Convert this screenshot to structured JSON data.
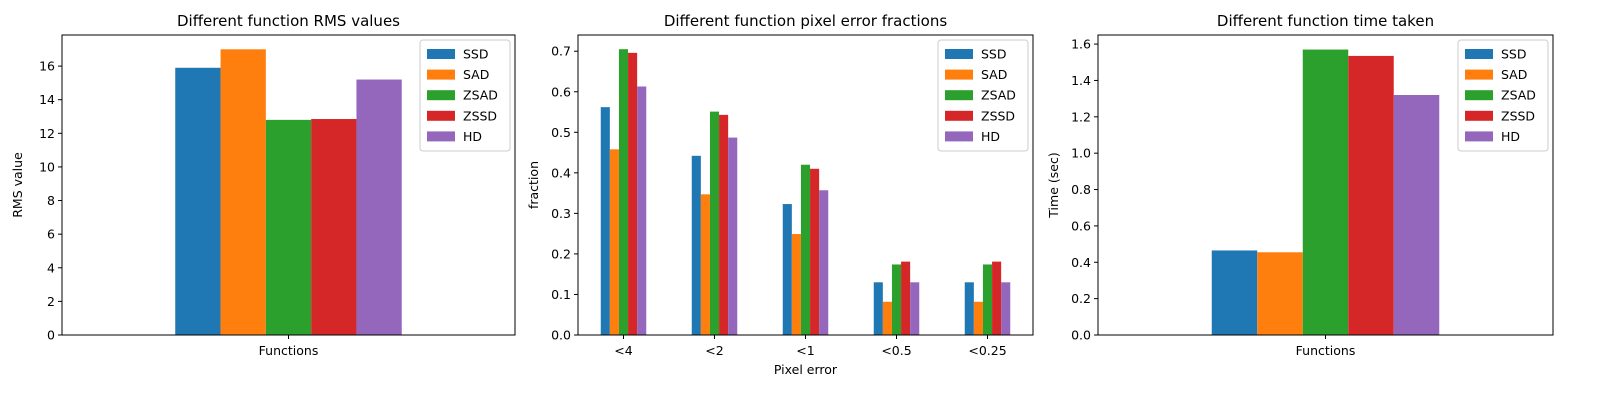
{
  "chart_data": [
    {
      "type": "bar",
      "title": "Different function RMS values",
      "xlabel": "",
      "ylabel": "RMS value",
      "categories": [
        "Functions"
      ],
      "series": [
        {
          "name": "SSD",
          "values": [
            15.9
          ]
        },
        {
          "name": "SAD",
          "values": [
            17.0
          ]
        },
        {
          "name": "ZSAD",
          "values": [
            12.8
          ]
        },
        {
          "name": "ZSSD",
          "values": [
            12.85
          ]
        },
        {
          "name": "HD",
          "values": [
            15.2
          ]
        }
      ],
      "ylim": [
        0,
        17.85
      ],
      "yticks": [
        0,
        2,
        4,
        6,
        8,
        10,
        12,
        14,
        16
      ],
      "ytick_labels": [
        "0",
        "2",
        "4",
        "6",
        "8",
        "10",
        "12",
        "14",
        "16"
      ],
      "legend": "top-right",
      "grid": false
    },
    {
      "type": "bar",
      "title": "Different function pixel error fractions",
      "xlabel": "Pixel error",
      "ylabel": "fraction",
      "categories": [
        "<4",
        "<2",
        "<1",
        "<0.5",
        "<0.25"
      ],
      "series": [
        {
          "name": "SSD",
          "values": [
            0.562,
            0.442,
            0.323,
            0.13,
            0.13
          ]
        },
        {
          "name": "SAD",
          "values": [
            0.458,
            0.347,
            0.249,
            0.082,
            0.082
          ]
        },
        {
          "name": "ZSAD",
          "values": [
            0.705,
            0.551,
            0.42,
            0.174,
            0.174
          ]
        },
        {
          "name": "ZSSD",
          "values": [
            0.696,
            0.543,
            0.41,
            0.181,
            0.181
          ]
        },
        {
          "name": "HD",
          "values": [
            0.613,
            0.487,
            0.357,
            0.13,
            0.13
          ]
        }
      ],
      "ylim": [
        0,
        0.74
      ],
      "yticks": [
        0,
        0.1,
        0.2,
        0.3,
        0.4,
        0.5,
        0.6,
        0.7
      ],
      "ytick_labels": [
        "0.0",
        "0.1",
        "0.2",
        "0.3",
        "0.4",
        "0.5",
        "0.6",
        "0.7"
      ],
      "legend": "top-right",
      "grid": false
    },
    {
      "type": "bar",
      "title": "Different function time taken",
      "xlabel": "",
      "ylabel": "Time (sec)",
      "categories": [
        "Functions"
      ],
      "series": [
        {
          "name": "SSD",
          "values": [
            0.465
          ]
        },
        {
          "name": "SAD",
          "values": [
            0.455
          ]
        },
        {
          "name": "ZSAD",
          "values": [
            1.57
          ]
        },
        {
          "name": "ZSSD",
          "values": [
            1.535
          ]
        },
        {
          "name": "HD",
          "values": [
            1.32
          ]
        }
      ],
      "ylim": [
        0,
        1.65
      ],
      "yticks": [
        0,
        0.2,
        0.4,
        0.6,
        0.8,
        1.0,
        1.2,
        1.4,
        1.6
      ],
      "ytick_labels": [
        "0.0",
        "0.2",
        "0.4",
        "0.6",
        "0.8",
        "1.0",
        "1.2",
        "1.4",
        "1.6"
      ],
      "legend": "top-right",
      "grid": false
    }
  ],
  "colors": {
    "SSD": "#1f77b4",
    "SAD": "#ff7f0e",
    "ZSAD": "#2ca02c",
    "ZSSD": "#d62728",
    "HD": "#9467bd"
  }
}
